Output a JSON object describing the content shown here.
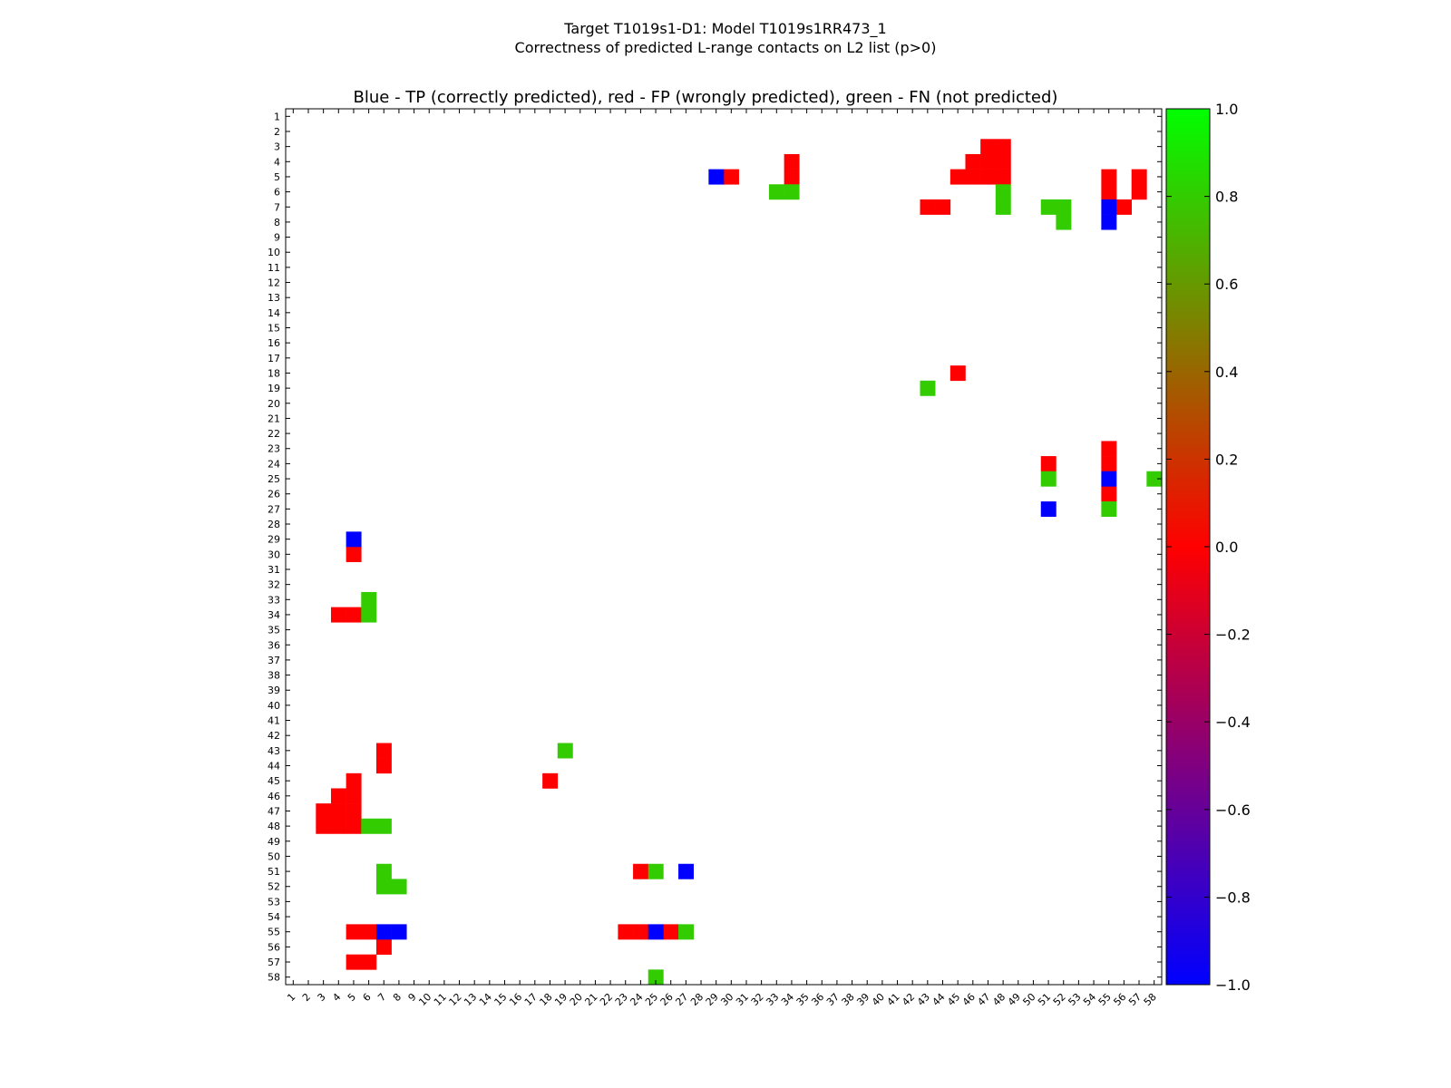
{
  "figure": {
    "title_line1": "Target T1019s1-D1: Model T1019s1RR473_1",
    "title_line2": "Correctness of predicted L-range contacts on L2 list (p>0)"
  },
  "chart_data": {
    "type": "heatmap",
    "title": "Blue - TP (correctly predicted), red - FP (wrongly predicted), green - FN (not predicted)",
    "xlabel": "",
    "ylabel": "",
    "x_range": [
      1,
      58
    ],
    "y_range": [
      1,
      58
    ],
    "y_axis_inverted": true,
    "grid": false,
    "colors": {
      "TP": "#0000ff",
      "FP": "#ff0000",
      "FN": "#33cc00"
    },
    "colorbar": {
      "ticks": [
        "1.0",
        "0.8",
        "0.6",
        "0.4",
        "0.2",
        "0.0",
        "−0.2",
        "−0.4",
        "−0.6",
        "−0.8",
        "−1.0"
      ],
      "stops": [
        "#00ff00",
        "#ff0000",
        "#0000ff"
      ],
      "range": [
        -1.0,
        1.0
      ]
    },
    "cells": {
      "TP": [
        [
          29,
          5
        ],
        [
          55,
          7
        ],
        [
          55,
          8
        ],
        [
          51,
          27
        ],
        [
          55,
          25
        ],
        [
          5,
          29
        ],
        [
          7,
          55
        ],
        [
          8,
          55
        ],
        [
          25,
          55
        ],
        [
          27,
          51
        ]
      ],
      "FP": [
        [
          47,
          3
        ],
        [
          48,
          3
        ],
        [
          34,
          4
        ],
        [
          46,
          4
        ],
        [
          47,
          4
        ],
        [
          48,
          4
        ],
        [
          30,
          5
        ],
        [
          34,
          5
        ],
        [
          45,
          5
        ],
        [
          46,
          5
        ],
        [
          47,
          5
        ],
        [
          48,
          5
        ],
        [
          55,
          5
        ],
        [
          57,
          5
        ],
        [
          55,
          6
        ],
        [
          57,
          6
        ],
        [
          43,
          7
        ],
        [
          44,
          7
        ],
        [
          56,
          7
        ],
        [
          45,
          18
        ],
        [
          51,
          24
        ],
        [
          55,
          23
        ],
        [
          55,
          24
        ],
        [
          55,
          26
        ],
        [
          5,
          30
        ],
        [
          4,
          34
        ],
        [
          5,
          34
        ],
        [
          7,
          43
        ],
        [
          7,
          44
        ],
        [
          18,
          45
        ],
        [
          5,
          45
        ],
        [
          4,
          46
        ],
        [
          5,
          46
        ],
        [
          3,
          47
        ],
        [
          4,
          47
        ],
        [
          5,
          47
        ],
        [
          3,
          48
        ],
        [
          4,
          48
        ],
        [
          5,
          48
        ],
        [
          24,
          51
        ],
        [
          5,
          55
        ],
        [
          6,
          55
        ],
        [
          23,
          55
        ],
        [
          24,
          55
        ],
        [
          26,
          55
        ],
        [
          7,
          56
        ],
        [
          5,
          57
        ],
        [
          6,
          57
        ]
      ],
      "FN": [
        [
          33,
          6
        ],
        [
          34,
          6
        ],
        [
          48,
          6
        ],
        [
          48,
          7
        ],
        [
          51,
          7
        ],
        [
          52,
          7
        ],
        [
          52,
          8
        ],
        [
          43,
          19
        ],
        [
          51,
          25
        ],
        [
          58,
          25
        ],
        [
          55,
          27
        ],
        [
          6,
          33
        ],
        [
          6,
          34
        ],
        [
          19,
          43
        ],
        [
          6,
          48
        ],
        [
          7,
          48
        ],
        [
          25,
          51
        ],
        [
          7,
          51
        ],
        [
          7,
          52
        ],
        [
          8,
          52
        ],
        [
          27,
          55
        ],
        [
          25,
          58
        ]
      ]
    }
  }
}
